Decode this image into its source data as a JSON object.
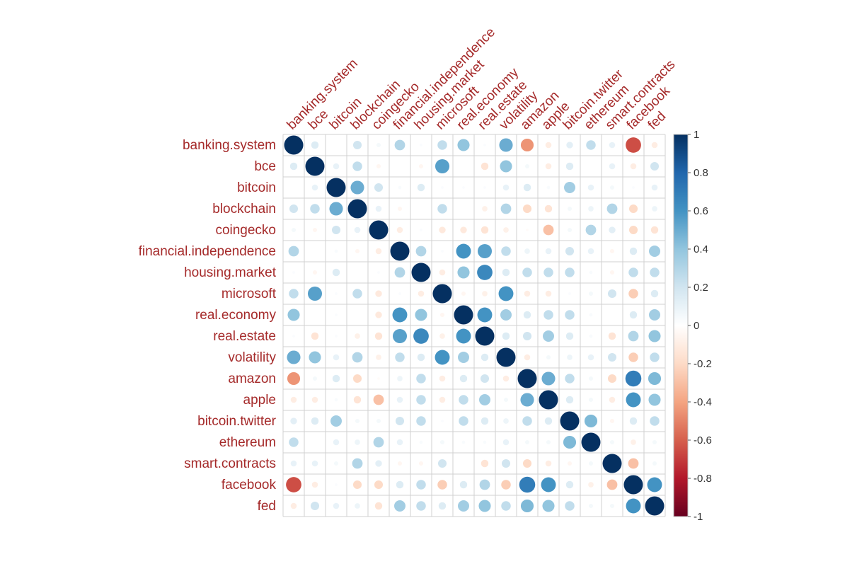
{
  "chart_data": {
    "type": "heatmap",
    "subtype": "correlation-circle-matrix",
    "title": "",
    "labels": [
      "banking.system",
      "bce",
      "bitcoin",
      "blockchain",
      "coingecko",
      "financial.independence",
      "housing.market",
      "microsoft",
      "real.economy",
      "real.estate",
      "volatility",
      "amazon",
      "apple",
      "bitcoin.twitter",
      "ethereum",
      "smart.contracts",
      "facebook",
      "fed"
    ],
    "matrix": [
      [
        1,
        0.15,
        0,
        0.2,
        0.05,
        0.3,
        0.02,
        0.25,
        0.4,
        0.02,
        0.5,
        -0.45,
        -0.1,
        0.12,
        0.25,
        0.1,
        -0.65,
        -0.1
      ],
      [
        0.15,
        1,
        0.1,
        0.25,
        -0.05,
        0,
        -0.05,
        0.55,
        0,
        -0.15,
        0.4,
        0.05,
        -0.1,
        0.15,
        0,
        0.1,
        -0.1,
        0.2
      ],
      [
        0,
        0.1,
        1,
        0.5,
        0.2,
        0.03,
        0.15,
        0.02,
        0.02,
        0.02,
        0.1,
        0.15,
        0.03,
        0.35,
        0.1,
        0.05,
        0.02,
        0.1
      ],
      [
        0.2,
        0.25,
        0.5,
        1,
        0.1,
        -0.05,
        0,
        0.25,
        0,
        -0.08,
        0.3,
        -0.2,
        -0.15,
        0.05,
        0.08,
        0.3,
        -0.2,
        0.08
      ],
      [
        0.05,
        -0.05,
        0.2,
        0.1,
        1,
        -0.1,
        0.02,
        -0.12,
        -0.12,
        -0.15,
        -0.08,
        -0.02,
        -0.3,
        0.05,
        0.3,
        0.12,
        -0.2,
        -0.15
      ],
      [
        0.3,
        0,
        0.03,
        -0.05,
        -0.1,
        1,
        0.3,
        0.02,
        0.6,
        0.55,
        0.25,
        0.08,
        0.1,
        0.2,
        0.1,
        -0.05,
        0.15,
        0.35
      ],
      [
        0.02,
        -0.05,
        0.15,
        0,
        0.02,
        0.3,
        1,
        -0.1,
        0.4,
        0.65,
        0.15,
        0.25,
        0.25,
        0.25,
        0.03,
        -0.05,
        0.25,
        0.25
      ],
      [
        0.25,
        0.55,
        0.02,
        0.25,
        -0.12,
        0.02,
        -0.1,
        1,
        -0.05,
        -0.08,
        0.6,
        -0.1,
        -0.1,
        0.02,
        0.05,
        0.2,
        -0.25,
        0.15
      ],
      [
        0.4,
        0,
        0.02,
        0,
        -0.12,
        0.6,
        0.4,
        -0.05,
        1,
        0.6,
        0.35,
        0.15,
        0.25,
        0.25,
        0.03,
        0,
        0.15,
        0.35
      ],
      [
        0.02,
        -0.15,
        0.02,
        -0.08,
        -0.15,
        0.55,
        0.65,
        -0.08,
        0.6,
        1,
        0.15,
        0.2,
        0.35,
        0.15,
        0.03,
        -0.15,
        0.3,
        0.4
      ],
      [
        0.5,
        0.4,
        0.1,
        0.3,
        -0.08,
        0.25,
        0.15,
        0.6,
        0.35,
        0.15,
        1,
        -0.1,
        0.05,
        0.08,
        0.1,
        0.2,
        -0.25,
        0.25
      ],
      [
        -0.45,
        0.05,
        0.15,
        -0.2,
        -0.02,
        0.08,
        0.25,
        -0.1,
        0.15,
        0.2,
        -0.1,
        1,
        0.5,
        0.25,
        0.05,
        -0.2,
        0.7,
        0.45
      ],
      [
        -0.1,
        -0.1,
        0.03,
        -0.15,
        -0.3,
        0.1,
        0.25,
        -0.1,
        0.25,
        0.35,
        0.05,
        0.5,
        1,
        0.15,
        0.05,
        -0.1,
        0.6,
        0.4
      ],
      [
        0.12,
        0.15,
        0.35,
        0.05,
        0.05,
        0.2,
        0.25,
        0.02,
        0.25,
        0.15,
        0.08,
        0.25,
        0.15,
        1,
        0.45,
        -0.05,
        0.15,
        0.25
      ],
      [
        0.25,
        0,
        0.1,
        0.08,
        0.3,
        0.1,
        0.03,
        0.05,
        0.03,
        0.03,
        0.1,
        0.05,
        0.05,
        0.45,
        1,
        0.05,
        -0.08,
        0.05
      ],
      [
        0.1,
        0.1,
        0.05,
        0.3,
        0.12,
        -0.05,
        -0.05,
        0.2,
        0,
        -0.15,
        0.2,
        -0.2,
        -0.1,
        -0.05,
        0.05,
        1,
        -0.3,
        0.05
      ],
      [
        -0.65,
        -0.1,
        0.02,
        -0.2,
        -0.2,
        0.15,
        0.25,
        -0.25,
        0.15,
        0.3,
        -0.25,
        0.7,
        0.6,
        0.15,
        -0.08,
        -0.3,
        1,
        0.6
      ],
      [
        -0.1,
        0.2,
        0.1,
        0.08,
        -0.15,
        0.35,
        0.25,
        0.15,
        0.35,
        0.4,
        0.25,
        0.45,
        0.4,
        0.25,
        0.05,
        0.05,
        0.6,
        1
      ]
    ],
    "color_scale": {
      "range": [
        -1,
        1
      ],
      "ticks": [
        "1",
        "0.8",
        "0.6",
        "0.4",
        "0.2",
        "0",
        "-0.2",
        "-0.4",
        "-0.6",
        "-0.8",
        "-1"
      ],
      "colors": [
        "#67001F",
        "#B2182B",
        "#D6604D",
        "#F4A582",
        "#FDDBC7",
        "#FFFFFF",
        "#D1E5F0",
        "#92C5DE",
        "#4393C3",
        "#2166AC",
        "#053061"
      ]
    },
    "legend_position": "right",
    "label_color": "#A52A2A"
  }
}
